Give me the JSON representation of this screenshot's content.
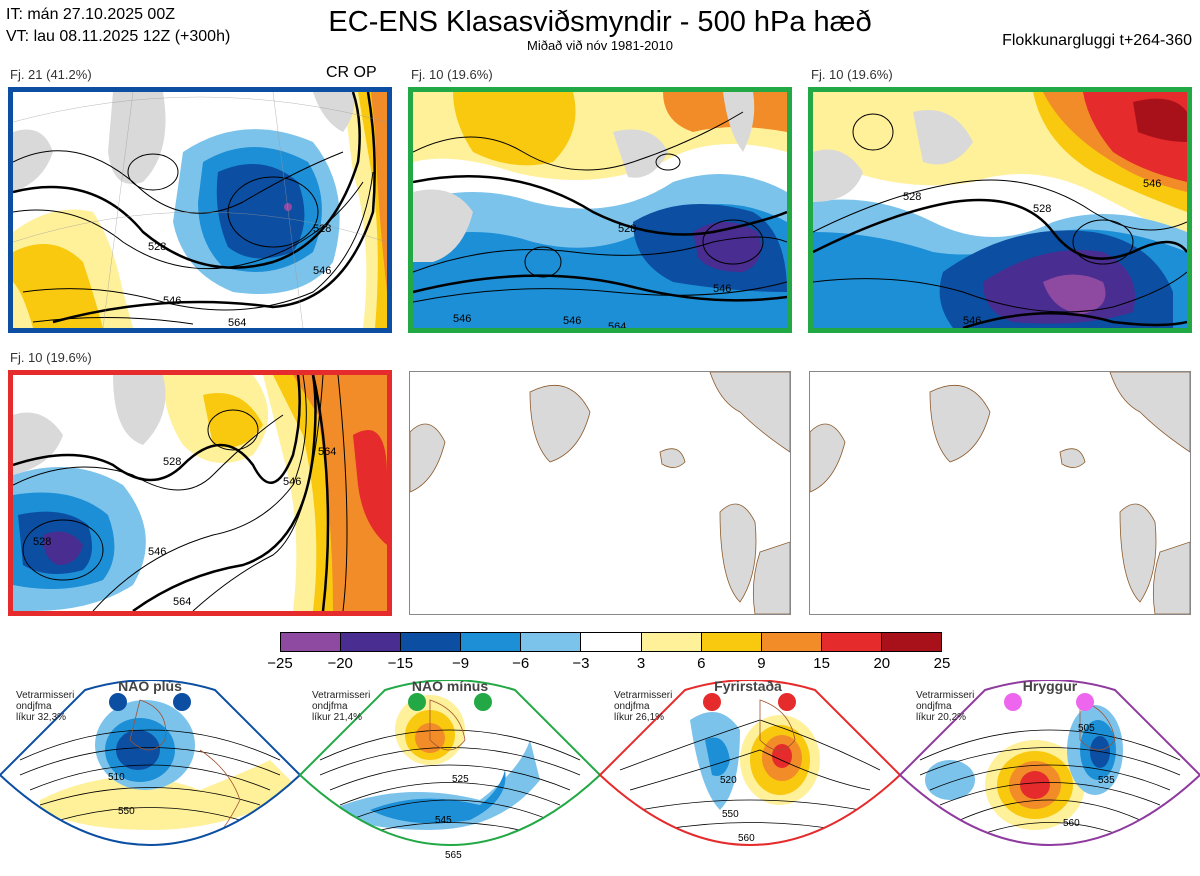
{
  "header": {
    "it": "IT: mán 27.10.2025 00Z",
    "vt": "VT: lau 08.11.2025 12Z  (+300h)",
    "title": "EC-ENS Klasasviðsmyndir - 500 hPa hæð",
    "subtitle": "Miðað við nóv 1981-2010",
    "window": "Flokkunargluggi t+264-360"
  },
  "panels": [
    {
      "label": "Fj. 21 (41.2%)",
      "extra": "CR OP",
      "border": "#0b4ea2",
      "contours": [
        "528",
        "528",
        "546",
        "546",
        "564"
      ]
    },
    {
      "label": "Fj. 10 (19.6%)",
      "extra": "",
      "border": "#22a845",
      "contours": [
        "528",
        "546",
        "546",
        "546",
        "564"
      ]
    },
    {
      "label": "Fj. 10 (19.6%)",
      "extra": "",
      "border": "#22a845",
      "contours": [
        "528",
        "528",
        "546",
        "546"
      ]
    },
    {
      "label": "Fj. 10 (19.6%)",
      "extra": "",
      "border": "#e52b2b",
      "contours": [
        "528",
        "528",
        "546",
        "546",
        "564",
        "564"
      ]
    }
  ],
  "colorbar": {
    "colors": [
      "#8e4aa0",
      "#4a2d91",
      "#0b4ea2",
      "#1c8fd6",
      "#7cc3ec",
      "#ffffff",
      "#fff09a",
      "#f9c910",
      "#f28c28",
      "#e52b2b",
      "#a8111a"
    ],
    "labels": [
      "−25",
      "−20",
      "−15",
      "−9",
      "−6",
      "−3",
      "3",
      "6",
      "9",
      "15",
      "20",
      "25"
    ]
  },
  "regimes": [
    {
      "name": "NAO plús",
      "note1": "Vetrarmisseri",
      "note2": "ondjfma",
      "note3": "líkur 32,3%",
      "color": "#0b4ea2",
      "contours": [
        "510",
        "550"
      ]
    },
    {
      "name": "NAO mínus",
      "note1": "Vetrarmisseri",
      "note2": "ondjfma",
      "note3": "líkur 21,4%",
      "color": "#22a845",
      "contours": [
        "525",
        "545",
        "565"
      ]
    },
    {
      "name": "Fyrirstaða",
      "note1": "Vetrarmisseri",
      "note2": "ondjfma",
      "note3": "líkur 26,1%",
      "color": "#e52b2b",
      "contours": [
        "520",
        "550",
        "560"
      ]
    },
    {
      "name": "Hryggur",
      "note1": "Vetrarmisseri",
      "note2": "ondjfma",
      "note3": "líkur 20,2%",
      "color": "#8e3a9e",
      "contours": [
        "505",
        "535",
        "560"
      ]
    }
  ]
}
